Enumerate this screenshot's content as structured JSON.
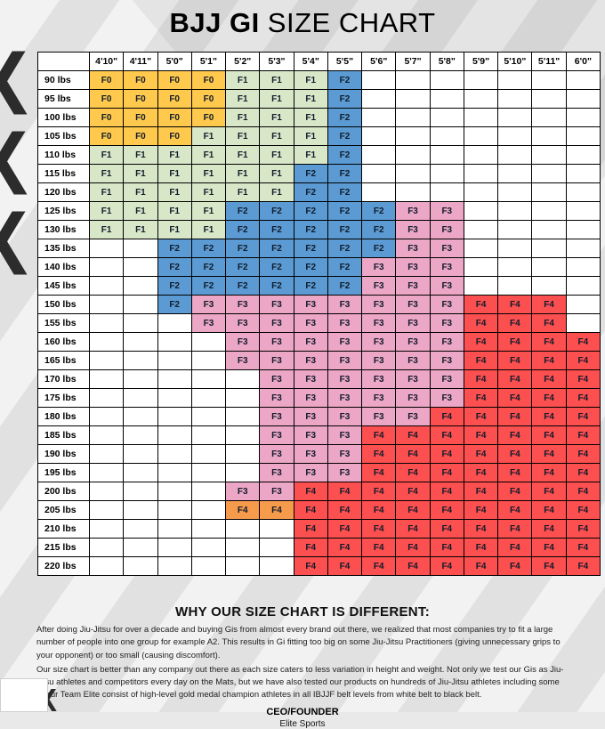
{
  "page": {
    "title_bold": "BJJ GI",
    "title_regular": " SIZE CHART"
  },
  "chart_data": {
    "type": "table",
    "title": "BJJ GI SIZE CHART",
    "column_headers": [
      "4'10\"",
      "4'11\"",
      "5'0\"",
      "5'1\"",
      "5'2\"",
      "5'3\"",
      "5'4\"",
      "5'5\"",
      "5'6\"",
      "5'7\"",
      "5'8\"",
      "5'9\"",
      "5'10\"",
      "5'11\"",
      "6'0\""
    ],
    "row_headers": [
      "90 lbs",
      "95 lbs",
      "100 lbs",
      "105 lbs",
      "110 lbs",
      "115 lbs",
      "120 lbs",
      "125 lbs",
      "130 lbs",
      "135 lbs",
      "140 lbs",
      "145 lbs",
      "150 lbs",
      "155 lbs",
      "160 lbs",
      "165 lbs",
      "170 lbs",
      "175 lbs",
      "180 lbs",
      "185 lbs",
      "190 lbs",
      "195 lbs",
      "200 lbs",
      "205 lbs",
      "210 lbs",
      "215 lbs",
      "220 lbs"
    ],
    "cells": [
      [
        "F0",
        "F0",
        "F0",
        "F0",
        "F1",
        "F1",
        "F1",
        "F2",
        "",
        "",
        "",
        "",
        "",
        "",
        ""
      ],
      [
        "F0",
        "F0",
        "F0",
        "F0",
        "F1",
        "F1",
        "F1",
        "F2",
        "",
        "",
        "",
        "",
        "",
        "",
        ""
      ],
      [
        "F0",
        "F0",
        "F0",
        "F0",
        "F1",
        "F1",
        "F1",
        "F2",
        "",
        "",
        "",
        "",
        "",
        "",
        ""
      ],
      [
        "F0",
        "F0",
        "F0",
        "F1",
        "F1",
        "F1",
        "F1",
        "F2",
        "",
        "",
        "",
        "",
        "",
        "",
        ""
      ],
      [
        "F1",
        "F1",
        "F1",
        "F1",
        "F1",
        "F1",
        "F1",
        "F2",
        "",
        "",
        "",
        "",
        "",
        "",
        ""
      ],
      [
        "F1",
        "F1",
        "F1",
        "F1",
        "F1",
        "F1",
        "F2",
        "F2",
        "",
        "",
        "",
        "",
        "",
        "",
        ""
      ],
      [
        "F1",
        "F1",
        "F1",
        "F1",
        "F1",
        "F1",
        "F2",
        "F2",
        "",
        "",
        "",
        "",
        "",
        "",
        ""
      ],
      [
        "F1",
        "F1",
        "F1",
        "F1",
        "F2",
        "F2",
        "F2",
        "F2",
        "F2",
        "F3",
        "F3",
        "",
        "",
        "",
        ""
      ],
      [
        "F1",
        "F1",
        "F1",
        "F1",
        "F2",
        "F2",
        "F2",
        "F2",
        "F2",
        "F3",
        "F3",
        "",
        "",
        "",
        ""
      ],
      [
        "",
        "",
        "F2",
        "F2",
        "F2",
        "F2",
        "F2",
        "F2",
        "F2",
        "F3",
        "F3",
        "",
        "",
        "",
        ""
      ],
      [
        "",
        "",
        "F2",
        "F2",
        "F2",
        "F2",
        "F2",
        "F2",
        "F3",
        "F3",
        "F3",
        "",
        "",
        "",
        ""
      ],
      [
        "",
        "",
        "F2",
        "F2",
        "F2",
        "F2",
        "F2",
        "F2",
        "F3",
        "F3",
        "F3",
        "",
        "",
        "",
        ""
      ],
      [
        "",
        "",
        "F2",
        "F3",
        "F3",
        "F3",
        "F3",
        "F3",
        "F3",
        "F3",
        "F3",
        "F4",
        "F4",
        "F4",
        ""
      ],
      [
        "",
        "",
        "",
        "F3",
        "F3",
        "F3",
        "F3",
        "F3",
        "F3",
        "F3",
        "F3",
        "F4",
        "F4",
        "F4",
        ""
      ],
      [
        "",
        "",
        "",
        "",
        "F3",
        "F3",
        "F3",
        "F3",
        "F3",
        "F3",
        "F3",
        "F4",
        "F4",
        "F4",
        "F4"
      ],
      [
        "",
        "",
        "",
        "",
        "F3",
        "F3",
        "F3",
        "F3",
        "F3",
        "F3",
        "F3",
        "F4",
        "F4",
        "F4",
        "F4"
      ],
      [
        "",
        "",
        "",
        "",
        "",
        "F3",
        "F3",
        "F3",
        "F3",
        "F3",
        "F3",
        "F4",
        "F4",
        "F4",
        "F4"
      ],
      [
        "",
        "",
        "",
        "",
        "",
        "F3",
        "F3",
        "F3",
        "F3",
        "F3",
        "F3",
        "F4",
        "F4",
        "F4",
        "F4"
      ],
      [
        "",
        "",
        "",
        "",
        "",
        "F3",
        "F3",
        "F3",
        "F3",
        "F3",
        "F4",
        "F4",
        "F4",
        "F4",
        "F4"
      ],
      [
        "",
        "",
        "",
        "",
        "",
        "F3",
        "F3",
        "F3",
        "F4",
        "F4",
        "F4",
        "F4",
        "F4",
        "F4",
        "F4"
      ],
      [
        "",
        "",
        "",
        "",
        "",
        "F3",
        "F3",
        "F3",
        "F4",
        "F4",
        "F4",
        "F4",
        "F4",
        "F4",
        "F4"
      ],
      [
        "",
        "",
        "",
        "",
        "",
        "F3",
        "F3",
        "F3",
        "F4",
        "F4",
        "F4",
        "F4",
        "F4",
        "F4",
        "F4"
      ],
      [
        "",
        "",
        "",
        "",
        "F3",
        "F3",
        "F4",
        "F4",
        "F4",
        "F4",
        "F4",
        "F4",
        "F4",
        "F4",
        "F4"
      ],
      [
        "",
        "",
        "",
        "",
        "F4o",
        "F4o",
        "F4",
        "F4",
        "F4",
        "F4",
        "F4",
        "F4",
        "F4",
        "F4",
        "F4"
      ],
      [
        "",
        "",
        "",
        "",
        "",
        "",
        "F4",
        "F4",
        "F4",
        "F4",
        "F4",
        "F4",
        "F4",
        "F4",
        "F4"
      ],
      [
        "",
        "",
        "",
        "",
        "",
        "",
        "F4",
        "F4",
        "F4",
        "F4",
        "F4",
        "F4",
        "F4",
        "F4",
        "F4"
      ],
      [
        "",
        "",
        "",
        "",
        "",
        "",
        "F4",
        "F4",
        "F4",
        "F4",
        "F4",
        "F4",
        "F4",
        "F4",
        "F4"
      ]
    ],
    "size_colors": {
      "F0": "#ffc94d",
      "F1": "#d9e7c9",
      "F2": "#5b9ad2",
      "F3": "#eca6c6",
      "F4": "#fc4f50",
      "F4o": "#f69a4c"
    },
    "empty_color": "#ffffff",
    "grid_border_color": "#000000"
  },
  "background": {
    "watermark_letter": "X",
    "base_color": "#e9e9e9"
  },
  "footer": {
    "heading": "WHY OUR SIZE CHART IS DIFFERENT:",
    "paragraph1": "After doing Jiu-Jitsu for over a decade and buying Gis from almost every brand out there, we realized that most companies try to fit a large number of people into one group for example A2. This results in Gi fitting too big on some Jiu-Jitsu Practitioners (giving unnecessary grips to your opponent) or too small (causing discomfort).",
    "paragraph2": "Our size chart is better than any company out there as each size caters to less variation in height and weight. Not only we test our Gis as Jiu-Jitsu athletes and competitors every day on the Mats, but we have also tested our products on hundreds of Jiu-Jitsu athletes including some of our Team Elite consist of high-level gold medal champion athletes in all IBJJF belt levels from white belt to black belt.",
    "ceo_label": "CEO/FOUNDER",
    "ceo_name": "Elite Sports"
  }
}
